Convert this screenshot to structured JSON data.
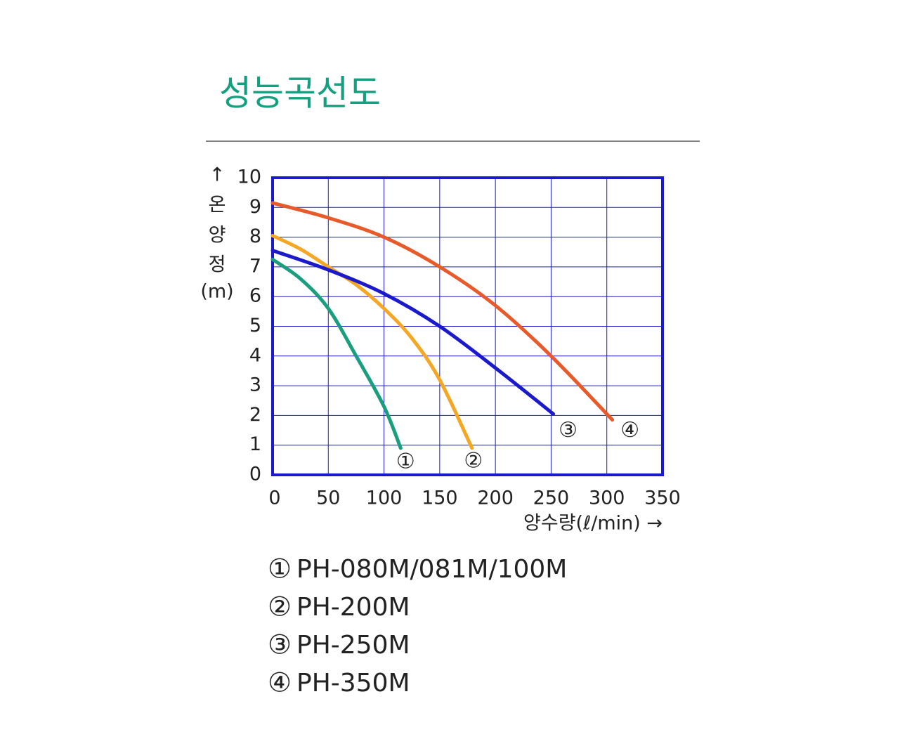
{
  "title": "성능곡선도",
  "chart_data": {
    "type": "line",
    "ylabel": [
      "↑",
      "온",
      "양",
      "정",
      "(m)"
    ],
    "xlabel": "양수량(ℓ/min) →",
    "xlim": [
      0,
      350
    ],
    "xticks": [
      0,
      50,
      100,
      150,
      200,
      250,
      300,
      350
    ],
    "ylim": [
      0,
      10
    ],
    "yticks": [
      0,
      1,
      2,
      3,
      4,
      5,
      6,
      7,
      8,
      9,
      10
    ],
    "grid": true,
    "series": [
      {
        "name": "PH-080M/081M/100M",
        "marker_label": "①",
        "color": "#1a9e7e",
        "x": [
          0,
          25,
          50,
          75,
          100,
          115
        ],
        "values": [
          7.25,
          6.6,
          5.6,
          4.0,
          2.3,
          0.9
        ]
      },
      {
        "name": "PH-200M",
        "marker_label": "②",
        "color": "#f5a623",
        "x": [
          0,
          25,
          50,
          75,
          100,
          125,
          150,
          179
        ],
        "values": [
          8.05,
          7.6,
          7.0,
          6.4,
          5.6,
          4.6,
          3.2,
          0.9
        ]
      },
      {
        "name": "PH-250M",
        "marker_label": "③",
        "color": "#1a1acc",
        "x": [
          0,
          50,
          100,
          150,
          200,
          252
        ],
        "values": [
          7.55,
          6.9,
          6.1,
          5.0,
          3.6,
          2.05
        ]
      },
      {
        "name": "PH-350M",
        "marker_label": "④",
        "color": "#e85a2a",
        "x": [
          0,
          50,
          100,
          150,
          200,
          250,
          305
        ],
        "values": [
          9.15,
          8.65,
          8.0,
          7.0,
          5.7,
          4.0,
          1.85
        ]
      }
    ]
  }
}
